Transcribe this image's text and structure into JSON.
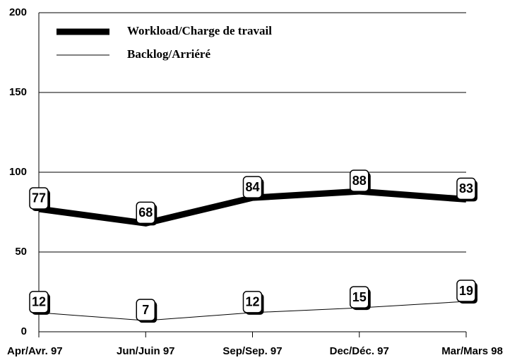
{
  "chart_data": {
    "type": "line",
    "categories": [
      "Apr/Avr. 97",
      "Jun/Juin 97",
      "Sep/Sep. 97",
      "Dec/Déc. 97",
      "Mar/Mars 98"
    ],
    "series": [
      {
        "name": "Workload/Charge de travail",
        "color": "#000000",
        "values": [
          77,
          68,
          84,
          88,
          83
        ]
      },
      {
        "name": "Backlog/Arriéré",
        "color": "#000000",
        "values": [
          12,
          7,
          12,
          15,
          19
        ]
      }
    ],
    "ylim": [
      0,
      200
    ],
    "yticks": [
      0,
      50,
      100,
      150,
      200
    ],
    "grid": true,
    "legend": "upper-left"
  }
}
